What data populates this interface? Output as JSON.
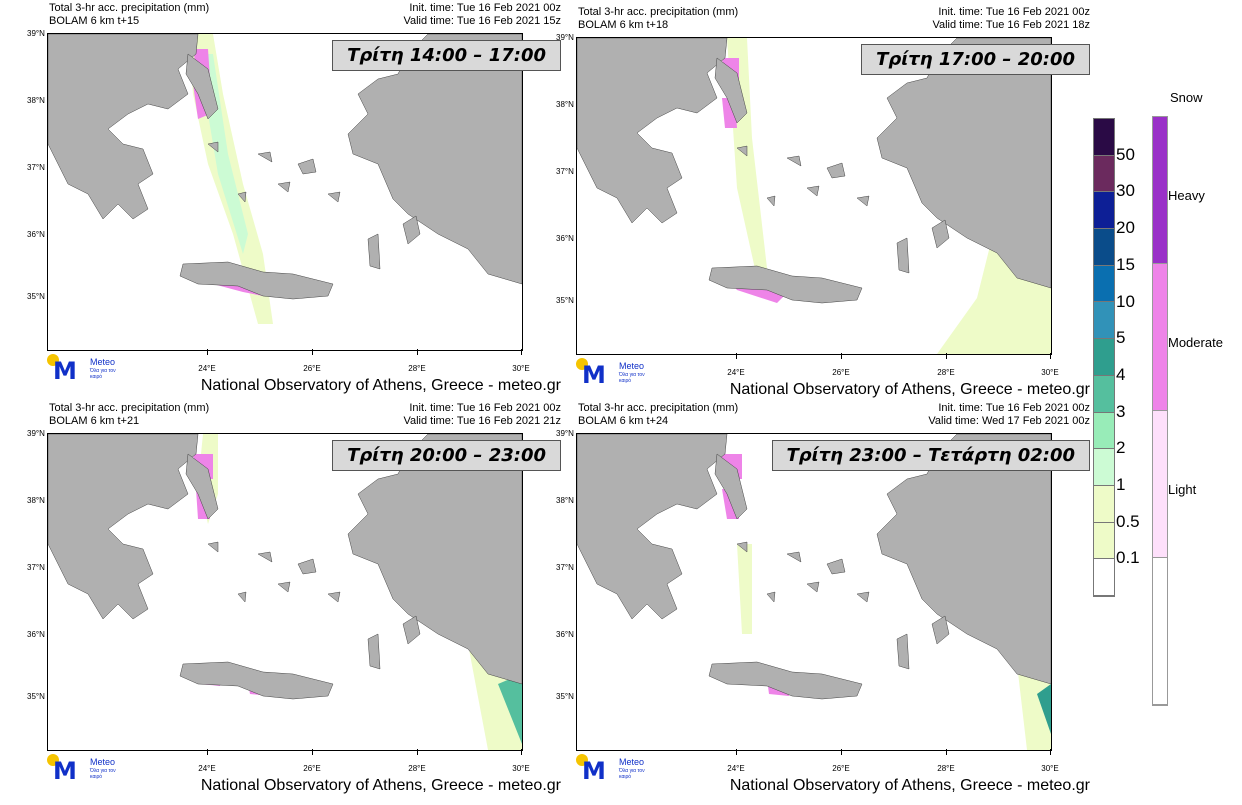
{
  "panels": [
    {
      "title": "Total 3-hr acc. precipitation (mm)",
      "model": "BOLAM 6 km t+15",
      "init": "Init. time: Tue 16 Feb 2021 00z",
      "valid": "Valid time: Tue 16 Feb 2021 15z",
      "banner": "Τρίτη 14:00 – 17:00"
    },
    {
      "title": "Total 3-hr acc. precipitation (mm)",
      "model": "BOLAM 6 km t+18",
      "init": "Init. time: Tue 16 Feb 2021 00z",
      "valid": "Valid time: Tue 16 Feb 2021 18z",
      "banner": "Τρίτη 17:00 – 20:00"
    },
    {
      "title": "Total 3-hr acc. precipitation (mm)",
      "model": "BOLAM 6 km t+21",
      "init": "Init. time: Tue 16 Feb 2021 00z",
      "valid": "Valid time: Tue 16 Feb 2021 21z",
      "banner": "Τρίτη 20:00 – 23:00"
    },
    {
      "title": "Total 3-hr acc. precipitation (mm)",
      "model": "BOLAM 6 km t+24",
      "init": "Init. time: Tue 16 Feb 2021 00z",
      "valid": "Valid time: Wed 17 Feb 2021 00z",
      "banner": "Τρίτη 23:00 – Τετάρτη 02:00"
    }
  ],
  "lat_ticks": [
    "39°N",
    "38°N",
    "37°N",
    "36°N",
    "35°N"
  ],
  "lon_ticks": [
    "24°E",
    "26°E",
    "28°E",
    "30°E"
  ],
  "credit": "National Observatory of Athens, Greece - meteo.gr",
  "logo": {
    "name": "Meteo",
    "tagline": "Όλα για τον καιρό"
  },
  "precip_legend": {
    "labels": [
      "50",
      "30",
      "20",
      "15",
      "10",
      "5",
      "4",
      "3",
      "2",
      "1",
      "0.5",
      "0.1"
    ],
    "colors": [
      "#2a0a45",
      "#6b2a5e",
      "#0d1f96",
      "#0a4c8a",
      "#0a6fb0",
      "#3192b8",
      "#2f9e8e",
      "#55bf9e",
      "#98ecb8",
      "#ccfbd4",
      "#eefbc8",
      "#eefbc8",
      "#ffffff"
    ]
  },
  "snow_legend": {
    "title": "Snow",
    "labels": [
      "Heavy",
      "Moderate",
      "Light"
    ],
    "colors": [
      "#9a30c8",
      "#ee84e8",
      "#fee0fb",
      "#ffffff"
    ]
  },
  "colors": {
    "land": "#b0b0b0",
    "banner_bg": "#d9d9d9"
  }
}
